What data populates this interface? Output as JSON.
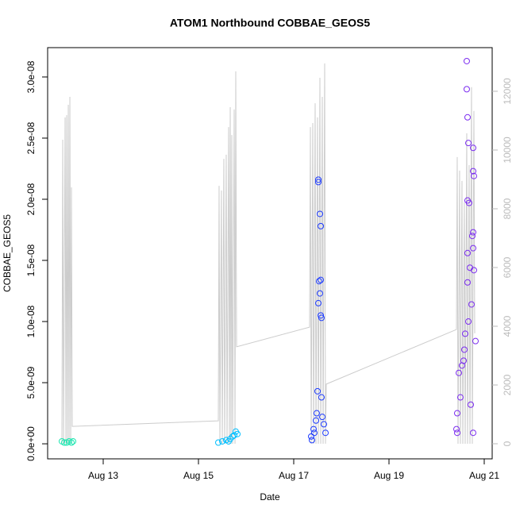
{
  "chart_data": {
    "type": "scatter",
    "title": "ATOM1 Northbound COBBAE_GEOS5",
    "xlabel": "Date",
    "ylabel": "COBBAE_GEOS5",
    "xlim": [
      11.833,
      21.167
    ],
    "xticks": [
      {
        "value": 13,
        "label": "Aug 13"
      },
      {
        "value": 15,
        "label": "Aug 15"
      },
      {
        "value": 17,
        "label": "Aug 17"
      },
      {
        "value": 19,
        "label": "Aug 19"
      },
      {
        "value": 21,
        "label": "Aug 21"
      }
    ],
    "ylim": [
      -1.23e-09,
      3.24e-08
    ],
    "yticks": [
      {
        "value": 0,
        "label": "0.0e+00"
      },
      {
        "value": 5e-09,
        "label": "5.0e-09"
      },
      {
        "value": 1e-08,
        "label": "1.0e-08"
      },
      {
        "value": 1.5e-08,
        "label": "1.5e-08"
      },
      {
        "value": 2e-08,
        "label": "2.0e-08"
      },
      {
        "value": 2.5e-08,
        "label": "2.5e-08"
      },
      {
        "value": 3e-08,
        "label": "3.0e-08"
      }
    ],
    "y2lim": [
      -514,
      13486
    ],
    "y2ticks": [
      0,
      2000,
      4000,
      6000,
      8000,
      10000,
      12000
    ],
    "series": [
      {
        "type": "line",
        "axis": "y2",
        "color": "#cccccc",
        "x": [
          12.133,
          12.15,
          12.167,
          12.2,
          12.217,
          12.233,
          12.25,
          12.267,
          12.283,
          12.3,
          12.317,
          12.333,
          12.35,
          15.417,
          15.433,
          15.45,
          15.483,
          15.5,
          15.533,
          15.55,
          15.583,
          15.6,
          15.633,
          15.65,
          15.667,
          15.683,
          15.7,
          15.717,
          15.75,
          15.767,
          15.783,
          15.8,
          17.333,
          17.35,
          17.367,
          17.4,
          17.417,
          17.45,
          17.467,
          17.5,
          17.517,
          17.55,
          17.567,
          17.6,
          17.617,
          17.65,
          17.667,
          17.683,
          20.417,
          20.433,
          20.45,
          20.483,
          20.5,
          20.533,
          20.55,
          20.583,
          20.6,
          20.633,
          20.65,
          20.683,
          20.7,
          20.733,
          20.75,
          20.783,
          20.8
        ],
        "values": [
          0,
          10350,
          0,
          11110,
          0,
          11190,
          0,
          11540,
          0,
          11810,
          0,
          8730,
          590,
          780,
          8780,
          0,
          8620,
          0,
          9700,
          0,
          9840,
          0,
          10780,
          0,
          11460,
          0,
          10510,
          0,
          11380,
          0,
          12680,
          3300,
          3970,
          10780,
          0,
          10920,
          0,
          11590,
          0,
          11110,
          0,
          12460,
          0,
          11810,
          0,
          12950,
          0,
          2030,
          3890,
          9760,
          0,
          9300,
          0,
          8950,
          0,
          8220,
          0,
          10570,
          0,
          9490,
          0,
          12140,
          0,
          11330,
          3760
        ]
      },
      {
        "color": "#1ce6b0",
        "x": [
          12.133,
          12.183,
          12.233,
          12.283,
          12.333,
          12.367
        ],
        "values": [
          2e-10,
          1e-10,
          1e-10,
          2e-10,
          1e-10,
          2e-10
        ]
      },
      {
        "color": "#00bfff",
        "x": [
          15.417,
          15.5,
          15.583,
          15.633,
          15.667,
          15.717,
          15.75,
          15.783,
          15.817
        ],
        "values": [
          1e-10,
          2e-10,
          3e-10,
          2e-10,
          4e-10,
          6e-10,
          7e-10,
          1e-09,
          8e-10
        ]
      },
      {
        "color": "#1e3cff",
        "x": [
          17.367,
          17.383,
          17.417,
          17.433,
          17.467,
          17.483,
          17.6,
          17.633,
          17.667,
          17.517,
          17.517,
          17.55,
          17.567,
          17.533,
          17.567,
          17.55,
          17.517,
          17.567,
          17.583,
          17.5,
          17.583
        ],
        "values": [
          6e-10,
          3e-10,
          1.2e-09,
          9e-10,
          1.9e-09,
          2.5e-09,
          2.2e-09,
          1.6e-09,
          9e-10,
          2.16e-08,
          2.14e-08,
          1.88e-08,
          1.78e-08,
          1.33e-08,
          1.34e-08,
          1.23e-08,
          1.15e-08,
          1.05e-08,
          1.03e-08,
          4.3e-09,
          3.8e-09
        ]
      },
      {
        "color": "#7b2cf0",
        "x": [
          20.633,
          20.633,
          20.65,
          20.667,
          20.767,
          20.767,
          20.783,
          20.65,
          20.683,
          20.767,
          20.75,
          20.767,
          20.65,
          20.7,
          20.783,
          20.65,
          20.733,
          20.667,
          20.583,
          20.533,
          20.467,
          20.5,
          20.433,
          20.417,
          20.433,
          20.767,
          20.717,
          20.817,
          20.6,
          20.567
        ],
        "values": [
          3.13e-08,
          2.9e-08,
          2.67e-08,
          2.46e-08,
          2.42e-08,
          2.23e-08,
          2.19e-08,
          1.99e-08,
          1.97e-08,
          1.73e-08,
          1.7e-08,
          1.6e-08,
          1.56e-08,
          1.44e-08,
          1.42e-08,
          1.32e-08,
          1.14e-08,
          1e-08,
          7.7e-09,
          6.4e-09,
          5.8e-09,
          3.8e-09,
          2.5e-09,
          1.2e-09,
          9e-10,
          9e-10,
          3.2e-09,
          8.4e-09,
          9e-09,
          6.8e-09
        ]
      }
    ]
  }
}
